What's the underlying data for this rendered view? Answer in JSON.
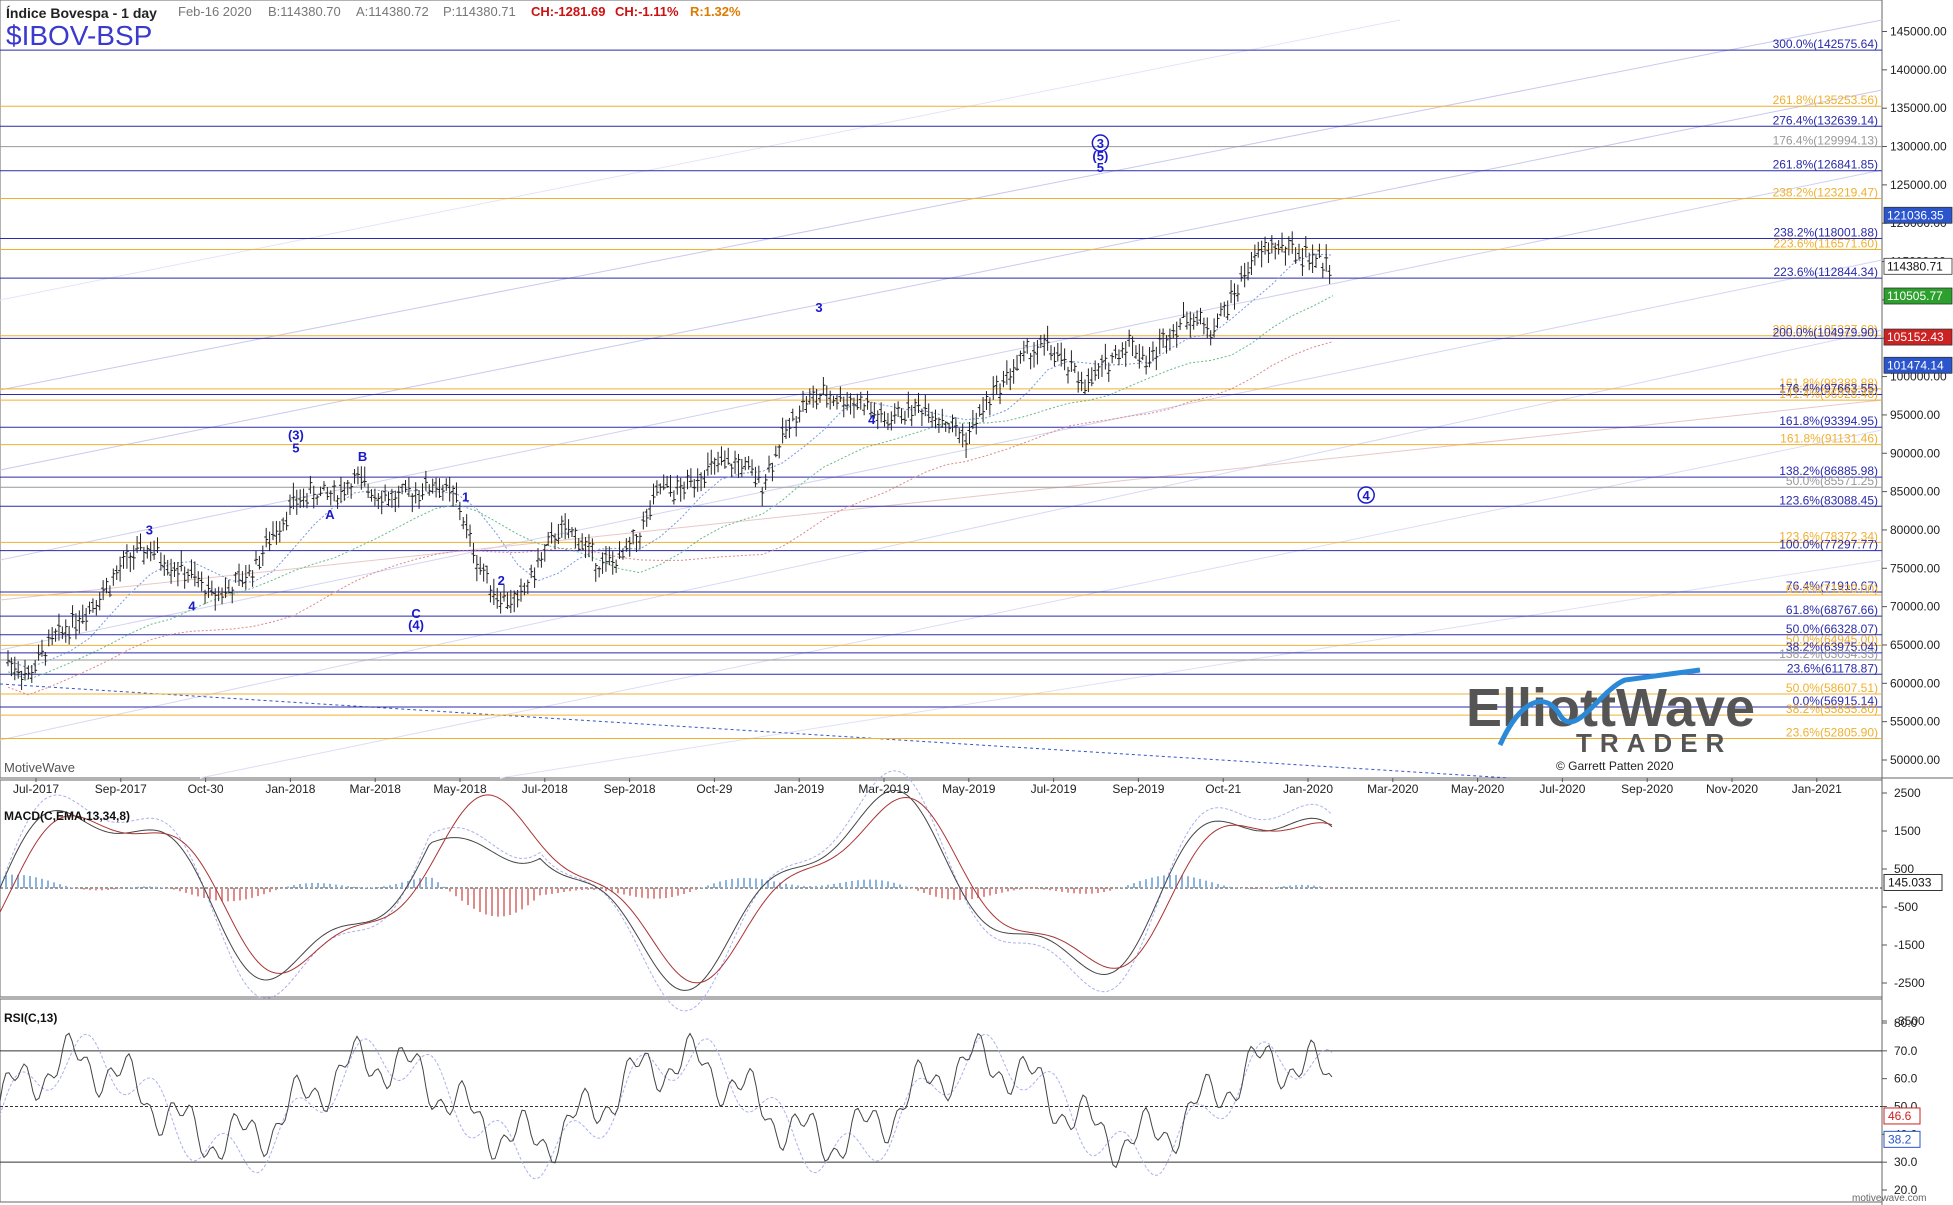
{
  "header": {
    "instrument": "Índice Bovespa - 1 day",
    "date": "Feb-16 2020",
    "bid": "B:114380.70",
    "ask": "A:114380.72",
    "price": "P:114380.71",
    "change_points": "CH:-1281.69",
    "change_pct": "CH:-1.11%",
    "range": "R:1.32%",
    "symbol": "$IBOV-BSP"
  },
  "watermark_left": "MotiveWave",
  "footer_right": "motivewave.com",
  "logo": {
    "line1": "ElliottWave",
    "line2": "TRADER",
    "credit": "© Garrett Patten 2020"
  },
  "colors": {
    "fib_blue": "#2a2aaa",
    "fib_orange": "#f0b030",
    "fib_gray": "#999999",
    "wave_label": "#1a1acc",
    "macd_pos": "#8ab4de",
    "macd_neg": "#e08a8a",
    "price_box_blue": "#2a55cc",
    "price_box_green": "#2ca02c",
    "price_box_red": "#cc2222"
  },
  "price_axis_ticks": [
    "145000.00",
    "140000.00",
    "135000.00",
    "130000.00",
    "125000.00",
    "120000.00",
    "115000.00",
    "110000.00",
    "105000.00",
    "100000.00",
    "95000.00",
    "90000.00",
    "85000.00",
    "80000.00",
    "75000.00",
    "70000.00",
    "65000.00",
    "60000.00",
    "55000.00",
    "50000.00"
  ],
  "price_boxes": [
    {
      "label": "121036.35",
      "value": 121036.35,
      "style": "blue"
    },
    {
      "label": "114380.71",
      "value": 114380.71,
      "style": "white"
    },
    {
      "label": "110505.77",
      "value": 110505.77,
      "style": "green"
    },
    {
      "label": "105152.43",
      "value": 105152.43,
      "style": "red"
    },
    {
      "label": "101474.14",
      "value": 101474.14,
      "style": "blue"
    }
  ],
  "time_axis_ticks": [
    "Jul-2017",
    "Sep-2017",
    "Oct-30",
    "Jan-2018",
    "Mar-2018",
    "May-2018",
    "Jul-2018",
    "Sep-2018",
    "Oct-29",
    "Jan-2019",
    "Mar-2019",
    "May-2019",
    "Jul-2019",
    "Sep-2019",
    "Oct-21",
    "Jan-2020",
    "Mar-2020",
    "May-2020",
    "Jul-2020",
    "Sep-2020",
    "Nov-2020",
    "Jan-2021"
  ],
  "fib_levels": [
    {
      "label": "300.0%(142575.64)",
      "value": 142575.64,
      "color": "blue"
    },
    {
      "label": "261.8%(135253.56)",
      "value": 135253.56,
      "color": "orange"
    },
    {
      "label": "276.4%(132639.14)",
      "value": 132639.14,
      "color": "blue"
    },
    {
      "label": "176.4%(129994.13)",
      "value": 129994.13,
      "color": "gray"
    },
    {
      "label": "261.8%(126841.85)",
      "value": 126841.85,
      "color": "blue"
    },
    {
      "label": "238.2%(123219.47)",
      "value": 123219.47,
      "color": "orange"
    },
    {
      "label": "238.2%(118001.88)",
      "value": 118001.88,
      "color": "blue"
    },
    {
      "label": "223.6%(116571.60)",
      "value": 116571.6,
      "color": "orange"
    },
    {
      "label": "223.6%(112844.34)",
      "value": 112844.34,
      "color": "blue"
    },
    {
      "label": "200.0%(105327.69)",
      "value": 105327.69,
      "color": "orange"
    },
    {
      "label": "200.0%(104979.90)",
      "value": 104979.9,
      "color": "blue"
    },
    {
      "label": "161.8%(98388.88)",
      "value": 98388.88,
      "color": "orange"
    },
    {
      "label": "176.4%(97663.55)",
      "value": 97663.55,
      "color": "blue"
    },
    {
      "label": "141.4%(96928.48)",
      "value": 96928.48,
      "color": "orange"
    },
    {
      "label": "161.8%(93394.95)",
      "value": 93394.95,
      "color": "blue"
    },
    {
      "label": "161.8%(91131.46)",
      "value": 91131.46,
      "color": "orange"
    },
    {
      "label": "138.2%(86885.98)",
      "value": 86885.98,
      "color": "blue"
    },
    {
      "label": "50.0%(85571.25)",
      "value": 85571.25,
      "color": "gray"
    },
    {
      "label": "123.6%(83088.45)",
      "value": 83088.45,
      "color": "blue"
    },
    {
      "label": "123.6%(78372.34)",
      "value": 78372.34,
      "color": "orange"
    },
    {
      "label": "100.0%(77297.77)",
      "value": 77297.77,
      "color": "blue"
    },
    {
      "label": "76.4%(71910.67)",
      "value": 71910.67,
      "color": "blue"
    },
    {
      "label": "61.8%(71520.00)",
      "value": 71520.0,
      "color": "orange"
    },
    {
      "label": "61.8%(68767.66)",
      "value": 68767.66,
      "color": "blue"
    },
    {
      "label": "50.0%(66328.07)",
      "value": 66328.07,
      "color": "blue"
    },
    {
      "label": "50.0%(64945.00)",
      "value": 64945.0,
      "color": "orange"
    },
    {
      "label": "38.2%(63975.04)",
      "value": 63975.04,
      "color": "blue"
    },
    {
      "label": "138.2%(63034.33)",
      "value": 63034.33,
      "color": "gray"
    },
    {
      "label": "23.6%(61178.87)",
      "value": 61178.87,
      "color": "blue"
    },
    {
      "label": "50.0%(58607.51)",
      "value": 58607.51,
      "color": "orange"
    },
    {
      "label": "0.0%(56915.14)",
      "value": 56915.14,
      "color": "blue"
    },
    {
      "label": "38.2%(55855.80)",
      "value": 55855.8,
      "color": "orange"
    },
    {
      "label": "23.6%(52805.90)",
      "value": 52805.9,
      "color": "orange"
    }
  ],
  "wave_labels": [
    {
      "text": "3",
      "t": 0.167,
      "p": 79400,
      "circled": false
    },
    {
      "text": "4",
      "t": 0.222,
      "p": 69500,
      "circled": false
    },
    {
      "text": "(3)",
      "t": 0.356,
      "p": 91800,
      "circled": false
    },
    {
      "text": "5",
      "t": 0.356,
      "p": 90100,
      "circled": false
    },
    {
      "text": "A",
      "t": 0.4,
      "p": 81400,
      "circled": false
    },
    {
      "text": "B",
      "t": 0.442,
      "p": 89000,
      "circled": false
    },
    {
      "text": "1",
      "t": 0.575,
      "p": 83700,
      "circled": false
    },
    {
      "text": "2",
      "t": 0.621,
      "p": 72800,
      "circled": false
    },
    {
      "text": "C",
      "t": 0.511,
      "p": 68500,
      "circled": false
    },
    {
      "text": "(4)",
      "t": 0.511,
      "p": 67000,
      "circled": false
    },
    {
      "text": "3",
      "t": 1.031,
      "p": 108400,
      "circled": false
    },
    {
      "text": "4",
      "t": 1.099,
      "p": 93800,
      "circled": false
    },
    {
      "text": "3",
      "t": 1.394,
      "p": 129800,
      "circled": true
    },
    {
      "text": "(5)",
      "t": 1.394,
      "p": 128200,
      "circled": false
    },
    {
      "text": "5",
      "t": 1.394,
      "p": 126700,
      "circled": false
    },
    {
      "text": "4",
      "t": 1.737,
      "p": 83900,
      "circled": true
    }
  ],
  "macd": {
    "title": "MACD(C,EMA,13,34,8)",
    "axis_ticks": [
      "2500",
      "1500",
      "500",
      "-500",
      "-1500",
      "-2500",
      "-3500"
    ],
    "current": "145.033"
  },
  "rsi": {
    "title": "RSI(C,13)",
    "axis_ticks": [
      "80.0",
      "70.0",
      "60.0",
      "50.0",
      "40.0",
      "30.0",
      "20.0"
    ],
    "current_values": [
      "46.6",
      "38.2"
    ]
  },
  "chart_data": {
    "type": "ohlc-bar",
    "title": "Índice Bovespa - 1 day",
    "symbol": "$IBOV-BSP",
    "ylim": [
      48000,
      146500
    ],
    "x_range": [
      "Jul-2017",
      "Jan-2021"
    ],
    "grid": false,
    "series": [
      {
        "name": "$IBOV-BSP",
        "points": [
          {
            "x": "Jul-2017",
            "y": 63000
          },
          {
            "x": "Jul-2017",
            "y": 61000
          },
          {
            "x": "Aug-2017",
            "y": 65000
          },
          {
            "x": "Aug-2017",
            "y": 67500
          },
          {
            "x": "Sep-2017",
            "y": 70000
          },
          {
            "x": "Sep-2017",
            "y": 73000
          },
          {
            "x": "Oct-2017",
            "y": 76500
          },
          {
            "x": "Oct-2017",
            "y": 77500
          },
          {
            "x": "Oct-30",
            "y": 75500
          },
          {
            "x": "Nov-2017",
            "y": 74000
          },
          {
            "x": "Nov-2017",
            "y": 71500
          },
          {
            "x": "Dec-2017",
            "y": 72500
          },
          {
            "x": "Dec-2017",
            "y": 74800
          },
          {
            "x": "Jan-2018",
            "y": 79500
          },
          {
            "x": "Jan-2018",
            "y": 83500
          },
          {
            "x": "Feb-2018",
            "y": 84800
          },
          {
            "x": "Feb-2018",
            "y": 84500
          },
          {
            "x": "Mar-2018",
            "y": 86500
          },
          {
            "x": "Mar-2018",
            "y": 85000
          },
          {
            "x": "Apr-2018",
            "y": 84000
          },
          {
            "x": "Apr-2018",
            "y": 85000
          },
          {
            "x": "May-2018",
            "y": 86000
          },
          {
            "x": "May-2018",
            "y": 84000
          },
          {
            "x": "Jun-2018",
            "y": 76000
          },
          {
            "x": "Jun-2018",
            "y": 71500
          },
          {
            "x": "Jul-2018",
            "y": 70500
          },
          {
            "x": "Jul-2018",
            "y": 75500
          },
          {
            "x": "Aug-2018",
            "y": 80000
          },
          {
            "x": "Aug-2018",
            "y": 79000
          },
          {
            "x": "Sep-2018",
            "y": 75500
          },
          {
            "x": "Sep-2018",
            "y": 76000
          },
          {
            "x": "Oct-2018",
            "y": 79500
          },
          {
            "x": "Oct-2018",
            "y": 85500
          },
          {
            "x": "Oct-29",
            "y": 85000
          },
          {
            "x": "Nov-2018",
            "y": 87500
          },
          {
            "x": "Nov-2018",
            "y": 88500
          },
          {
            "x": "Dec-2018",
            "y": 88500
          },
          {
            "x": "Dec-2018",
            "y": 86000
          },
          {
            "x": "Jan-2019",
            "y": 92000
          },
          {
            "x": "Jan-2019",
            "y": 96500
          },
          {
            "x": "Feb-2019",
            "y": 97500
          },
          {
            "x": "Feb-2019",
            "y": 97000
          },
          {
            "x": "Mar-2019",
            "y": 96500
          },
          {
            "x": "Mar-2019",
            "y": 94000
          },
          {
            "x": "Apr-2019",
            "y": 95500
          },
          {
            "x": "Apr-2019",
            "y": 96000
          },
          {
            "x": "May-2019",
            "y": 94000
          },
          {
            "x": "May-2019",
            "y": 92000
          },
          {
            "x": "Jun-2019",
            "y": 96500
          },
          {
            "x": "Jun-2019",
            "y": 100000
          },
          {
            "x": "Jul-2019",
            "y": 103000
          },
          {
            "x": "Jul-2019",
            "y": 104000
          },
          {
            "x": "Aug-2019",
            "y": 101000
          },
          {
            "x": "Aug-2019",
            "y": 99000
          },
          {
            "x": "Sep-2019",
            "y": 102000
          },
          {
            "x": "Sep-2019",
            "y": 104500
          },
          {
            "x": "Oct-2019",
            "y": 102000
          },
          {
            "x": "Oct-21",
            "y": 106000
          },
          {
            "x": "Nov-2019",
            "y": 108000
          },
          {
            "x": "Nov-2019",
            "y": 106000
          },
          {
            "x": "Dec-2019",
            "y": 110000
          },
          {
            "x": "Dec-2019",
            "y": 115000
          },
          {
            "x": "Jan-2020",
            "y": 117000
          },
          {
            "x": "Jan-2020",
            "y": 116500
          },
          {
            "x": "Feb-2020",
            "y": 115500
          },
          {
            "x": "Feb-16 2020",
            "y": 114380.71
          }
        ]
      }
    ]
  }
}
